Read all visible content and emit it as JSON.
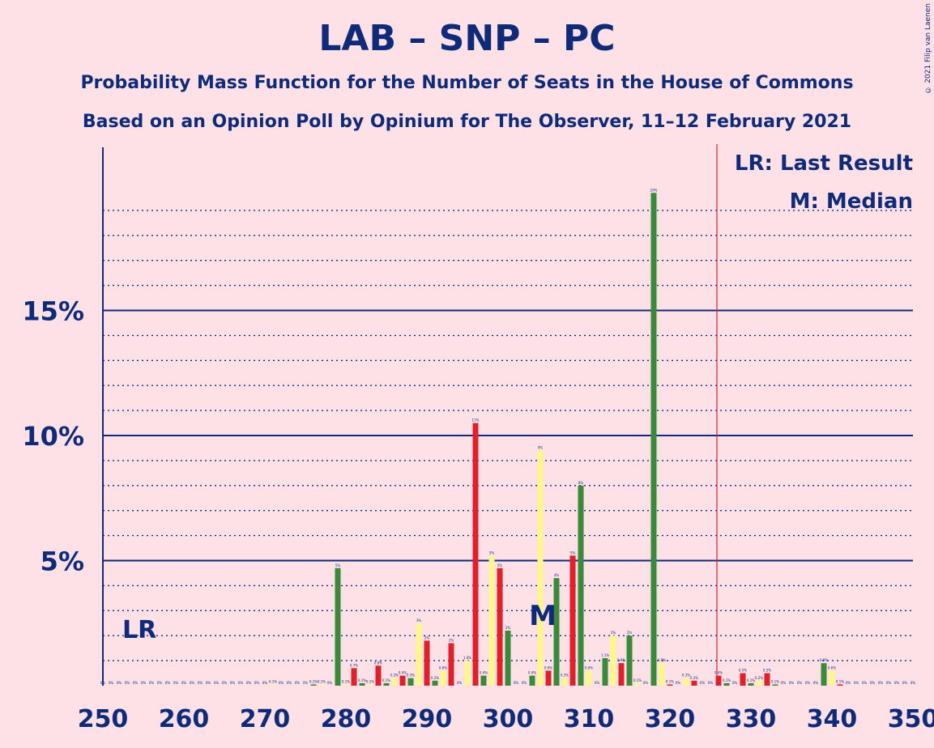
{
  "title": "LAB – SNP – PC",
  "subtitle1": "Probability Mass Function for the Number of Seats in the House of Commons",
  "subtitle2": "Based on an Opinion Poll by Opinium for The Observer, 11–12 February 2021",
  "copyright": "© 2021 Filip van Laenen",
  "legend": {
    "last_result": "LR: Last Result",
    "median": "M: Median"
  },
  "markers": {
    "last_result_label": "LR",
    "last_result_seats": 253,
    "median_label": "M",
    "median_seats": 305,
    "majority_seats": 326
  },
  "colors": {
    "background": "#fde1e6",
    "axis": "#0f2a78",
    "majority_line": "#e0202a",
    "bar_colors": [
      "#3a8a3a",
      "#fff78a",
      "#e0202a"
    ]
  },
  "chart_data": {
    "type": "bar",
    "xlim": [
      250,
      350
    ],
    "ylim": [
      0,
      21.5
    ],
    "x_ticks": [
      "250",
      "260",
      "270",
      "280",
      "290",
      "300",
      "310",
      "320",
      "330",
      "340",
      "350"
    ],
    "y_ticks": [
      "5%",
      "10%",
      "15%"
    ],
    "y_tick_values": [
      5,
      10,
      15
    ],
    "grid": "dotted every 1%, solid every 5%",
    "bars": [
      {
        "x": 250,
        "v": 0,
        "label": "0%"
      },
      {
        "x": 251,
        "v": 0,
        "label": "0%"
      },
      {
        "x": 252,
        "v": 0,
        "label": "0%"
      },
      {
        "x": 253,
        "v": 0,
        "label": "0%"
      },
      {
        "x": 254,
        "v": 0,
        "label": "0%"
      },
      {
        "x": 255,
        "v": 0,
        "label": "0%"
      },
      {
        "x": 256,
        "v": 0,
        "label": "0%"
      },
      {
        "x": 257,
        "v": 0,
        "label": "0%"
      },
      {
        "x": 258,
        "v": 0,
        "label": "0%"
      },
      {
        "x": 259,
        "v": 0,
        "label": "0%"
      },
      {
        "x": 260,
        "v": 0,
        "label": "0%"
      },
      {
        "x": 261,
        "v": 0,
        "label": "0%"
      },
      {
        "x": 262,
        "v": 0,
        "label": "0%"
      },
      {
        "x": 263,
        "v": 0,
        "label": "0%"
      },
      {
        "x": 264,
        "v": 0,
        "label": "0%"
      },
      {
        "x": 265,
        "v": 0,
        "label": "0%"
      },
      {
        "x": 266,
        "v": 0,
        "label": "0%"
      },
      {
        "x": 267,
        "v": 0,
        "label": "0%"
      },
      {
        "x": 268,
        "v": 0,
        "label": "0%"
      },
      {
        "x": 269,
        "v": 0,
        "label": "0%"
      },
      {
        "x": 270,
        "v": 0,
        "label": "0%"
      },
      {
        "x": 271,
        "v": 0.05,
        "label": "0.1%"
      },
      {
        "x": 272,
        "v": 0,
        "label": "0%"
      },
      {
        "x": 273,
        "v": 0,
        "label": "0%"
      },
      {
        "x": 274,
        "v": 0,
        "label": "0%"
      },
      {
        "x": 275,
        "v": 0,
        "label": "0%"
      },
      {
        "x": 276,
        "v": 0.05,
        "label": "0.1%"
      },
      {
        "x": 277,
        "v": 0.05,
        "label": "0.1%"
      },
      {
        "x": 278,
        "v": 0,
        "label": "0%"
      },
      {
        "x": 279,
        "v": 4.7,
        "label": "5%"
      },
      {
        "x": 280,
        "v": 0.05,
        "label": "0.1%"
      },
      {
        "x": 281,
        "v": 0.7,
        "label": "0.7%"
      },
      {
        "x": 282,
        "v": 0.1,
        "label": "0.1%"
      },
      {
        "x": 283,
        "v": 0.05,
        "label": "0.1%"
      },
      {
        "x": 284,
        "v": 0.8,
        "label": "0.8%"
      },
      {
        "x": 285,
        "v": 0.1,
        "label": "0.1%"
      },
      {
        "x": 286,
        "v": 0.3,
        "label": "0.3%"
      },
      {
        "x": 287,
        "v": 0.4,
        "label": "0.4%"
      },
      {
        "x": 288,
        "v": 0.3,
        "label": "0.3%"
      },
      {
        "x": 289,
        "v": 2.5,
        "label": "3%"
      },
      {
        "x": 290,
        "v": 1.8,
        "label": "2%"
      },
      {
        "x": 291,
        "v": 0.2,
        "label": "0.2%"
      },
      {
        "x": 292,
        "v": 0.6,
        "label": "0.6%"
      },
      {
        "x": 293,
        "v": 1.7,
        "label": "2%"
      },
      {
        "x": 294,
        "v": 0,
        "label": "0%"
      },
      {
        "x": 295,
        "v": 1.0,
        "label": "1.0%"
      },
      {
        "x": 296,
        "v": 10.5,
        "label": "11%"
      },
      {
        "x": 297,
        "v": 0.4,
        "label": "0.4%"
      },
      {
        "x": 298,
        "v": 5.2,
        "label": "5%"
      },
      {
        "x": 299,
        "v": 4.7,
        "label": "5%"
      },
      {
        "x": 300,
        "v": 2.2,
        "label": "2%"
      },
      {
        "x": 301,
        "v": 0,
        "label": "0%"
      },
      {
        "x": 302,
        "v": 0,
        "label": "0%"
      },
      {
        "x": 303,
        "v": 0.4,
        "label": "0.4%"
      },
      {
        "x": 304,
        "v": 9.4,
        "label": "9%"
      },
      {
        "x": 305,
        "v": 0.6,
        "label": "0.6%"
      },
      {
        "x": 306,
        "v": 4.3,
        "label": "4%"
      },
      {
        "x": 307,
        "v": 0.3,
        "label": "0.3%"
      },
      {
        "x": 308,
        "v": 5.2,
        "label": "5%"
      },
      {
        "x": 309,
        "v": 8.0,
        "label": "8%"
      },
      {
        "x": 310,
        "v": 0.6,
        "label": "0.6%"
      },
      {
        "x": 311,
        "v": 0,
        "label": "0%"
      },
      {
        "x": 312,
        "v": 1.1,
        "label": "1.1%"
      },
      {
        "x": 313,
        "v": 2.0,
        "label": "2%"
      },
      {
        "x": 314,
        "v": 0.9,
        "label": "0.9%"
      },
      {
        "x": 315,
        "v": 2.0,
        "label": "2%"
      },
      {
        "x": 316,
        "v": 0.1,
        "label": "0.1%"
      },
      {
        "x": 317,
        "v": 0,
        "label": "0%"
      },
      {
        "x": 318,
        "v": 19.7,
        "label": "20%"
      },
      {
        "x": 319,
        "v": 0.9,
        "label": "0.9%"
      },
      {
        "x": 320,
        "v": 0.05,
        "label": "0.1%"
      },
      {
        "x": 321,
        "v": 0,
        "label": "0%"
      },
      {
        "x": 322,
        "v": 0.3,
        "label": "0.3%"
      },
      {
        "x": 323,
        "v": 0.2,
        "label": "0.2%"
      },
      {
        "x": 324,
        "v": 0,
        "label": "0%"
      },
      {
        "x": 325,
        "v": 0,
        "label": "0%"
      },
      {
        "x": 326,
        "v": 0.4,
        "label": "0.4%"
      },
      {
        "x": 327,
        "v": 0.1,
        "label": "0.1%"
      },
      {
        "x": 328,
        "v": 0,
        "label": "0%"
      },
      {
        "x": 329,
        "v": 0.5,
        "label": "0.5%"
      },
      {
        "x": 330,
        "v": 0.1,
        "label": "0.1%"
      },
      {
        "x": 331,
        "v": 0.2,
        "label": "0.2%"
      },
      {
        "x": 332,
        "v": 0.5,
        "label": "0.5%"
      },
      {
        "x": 333,
        "v": 0.05,
        "label": "0.1%"
      },
      {
        "x": 334,
        "v": 0,
        "label": "0%"
      },
      {
        "x": 335,
        "v": 0,
        "label": "0%"
      },
      {
        "x": 336,
        "v": 0,
        "label": "0%"
      },
      {
        "x": 337,
        "v": 0,
        "label": "0%"
      },
      {
        "x": 338,
        "v": 0,
        "label": "0%"
      },
      {
        "x": 339,
        "v": 0.9,
        "label": "0.9%"
      },
      {
        "x": 340,
        "v": 0.6,
        "label": "0.6%"
      },
      {
        "x": 341,
        "v": 0.05,
        "label": "0.1%"
      },
      {
        "x": 342,
        "v": 0,
        "label": "0%"
      },
      {
        "x": 343,
        "v": 0,
        "label": "0%"
      },
      {
        "x": 344,
        "v": 0,
        "label": "0%"
      },
      {
        "x": 345,
        "v": 0,
        "label": "0%"
      },
      {
        "x": 346,
        "v": 0,
        "label": "0%"
      },
      {
        "x": 347,
        "v": 0,
        "label": "0%"
      },
      {
        "x": 348,
        "v": 0,
        "label": "0%"
      },
      {
        "x": 349,
        "v": 0,
        "label": "0%"
      },
      {
        "x": 350,
        "v": 0,
        "label": "0%"
      }
    ]
  }
}
